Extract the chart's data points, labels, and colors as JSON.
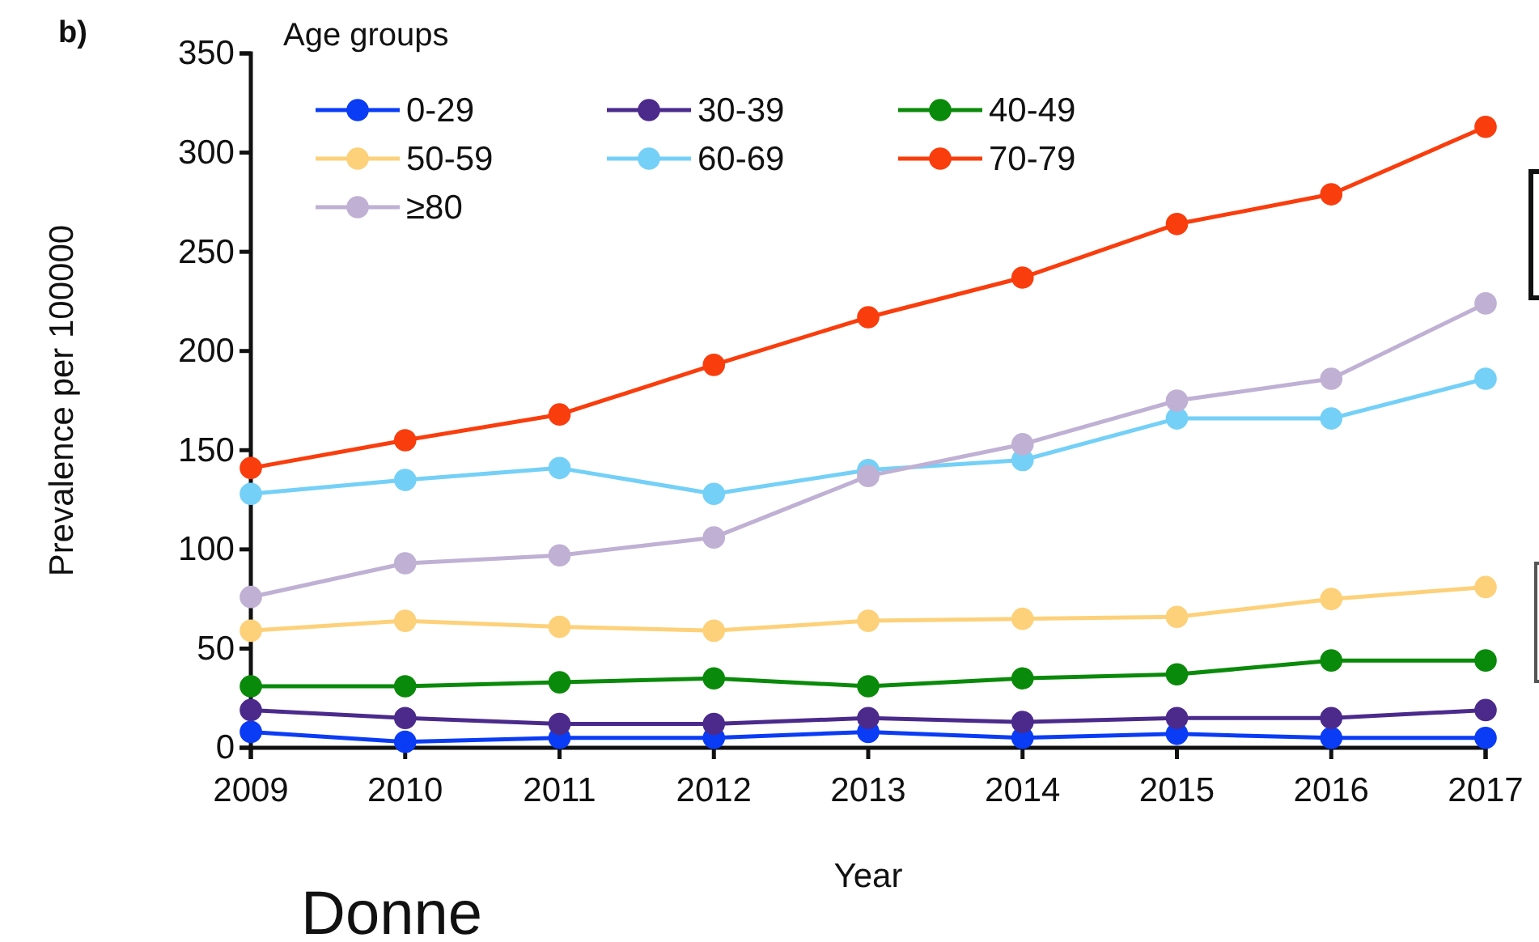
{
  "chart_data": {
    "type": "line",
    "xlabel": "Year",
    "ylabel": "Prevalence per 100000",
    "legend_title": "Age groups",
    "legend": "top left",
    "marker": "circle",
    "line_style": "solid",
    "grid": false,
    "x": [
      2009,
      2010,
      2011,
      2012,
      2013,
      2014,
      2015,
      2016,
      2017
    ],
    "xlim": [
      2009,
      2017
    ],
    "xticks": [
      2009,
      2010,
      2011,
      2012,
      2013,
      2014,
      2015,
      2016,
      2017
    ],
    "ylim": [
      0,
      350
    ],
    "yticks": [
      0,
      50,
      100,
      150,
      200,
      250,
      300,
      350
    ],
    "series": [
      {
        "name": "0-29",
        "color": "#0a3cf5",
        "values": [
          8,
          3,
          5,
          5,
          8,
          5,
          7,
          5,
          5
        ]
      },
      {
        "name": "30-39",
        "color": "#4b2a8c",
        "values": [
          19,
          15,
          12,
          12,
          15,
          13,
          15,
          15,
          19
        ]
      },
      {
        "name": "40-49",
        "color": "#0a8a0a",
        "values": [
          31,
          31,
          33,
          35,
          31,
          35,
          37,
          44,
          44
        ]
      },
      {
        "name": "50-59",
        "color": "#fdd17a",
        "values": [
          59,
          64,
          61,
          59,
          64,
          65,
          66,
          75,
          81
        ]
      },
      {
        "name": "60-69",
        "color": "#74d0f7",
        "values": [
          128,
          135,
          141,
          128,
          140,
          145,
          166,
          166,
          186
        ]
      },
      {
        "name": "70-79",
        "color": "#f93d0d",
        "values": [
          141,
          155,
          168,
          193,
          217,
          237,
          264,
          279,
          313
        ]
      },
      {
        "name": "≥80",
        "color": "#bfb0d4",
        "values": [
          76,
          93,
          97,
          106,
          137,
          153,
          175,
          186,
          224
        ]
      }
    ],
    "annotations": [
      "b)",
      "Donne"
    ]
  }
}
